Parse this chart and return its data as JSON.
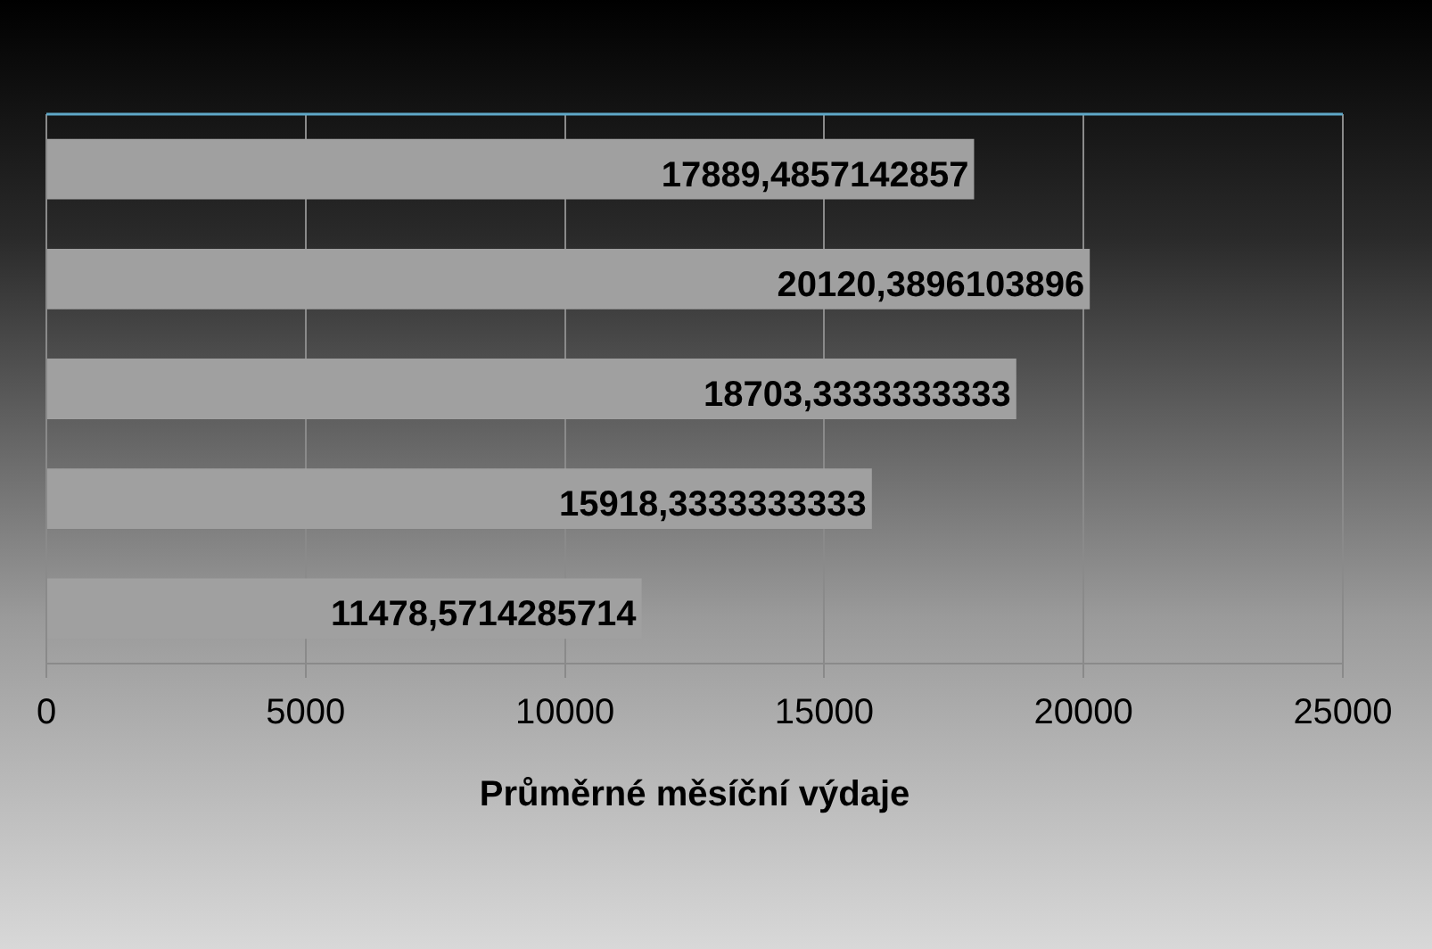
{
  "chart_data": {
    "type": "bar",
    "orientation": "horizontal",
    "xlabel": "Průměrné měsíční výdaje",
    "categories": [
      null,
      null,
      null,
      null,
      null
    ],
    "values": [
      17889.4857142857,
      20120.3896103896,
      18703.3333333333,
      15918.3333333333,
      11478.5714285714
    ],
    "value_labels": [
      "17889,4857142857",
      "20120,3896103896",
      "18703,3333333333",
      "15918,3333333333",
      "11478,5714285714"
    ],
    "color": "#a0a0a0",
    "xlim": [
      0,
      25000
    ],
    "xticks": [
      0,
      5000,
      10000,
      15000,
      20000,
      25000
    ],
    "grid": "x",
    "legend": false
  }
}
